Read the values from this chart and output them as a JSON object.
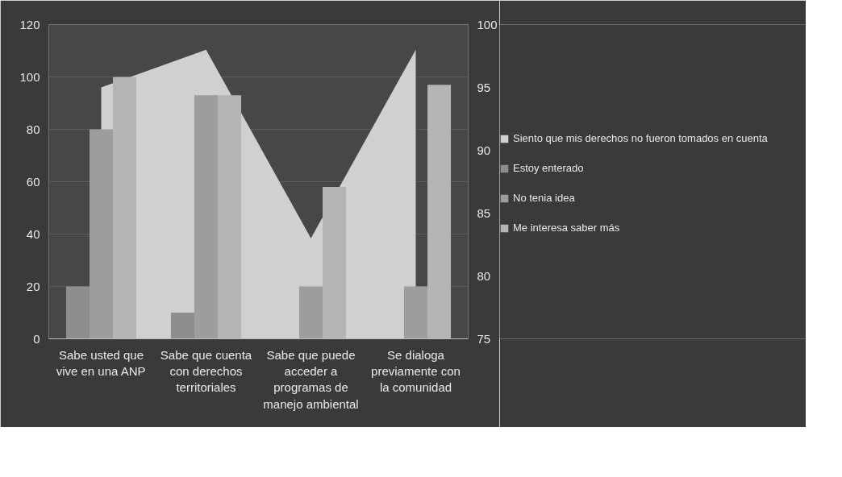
{
  "chart_data": {
    "type": "bar",
    "categories": [
      "Sabe usted que vive en una ANP",
      "Sabe que cuenta con derechos territoriales",
      "Sabe que puede acceder a programas de manejo ambiental",
      "Se dialoga previamente con la comunidad"
    ],
    "series": [
      {
        "name": "Siento que mis derechos no fueron tomados en cuenta",
        "type": "area",
        "axis": "y2",
        "color": "#d0d0d0",
        "values": [
          95,
          98,
          83,
          98
        ]
      },
      {
        "name": "Estoy enterado",
        "color": "#8e8e8e",
        "values": [
          20,
          10,
          null,
          null
        ]
      },
      {
        "name": "No tenia idea",
        "color": "#9d9d9d",
        "values": [
          80,
          93,
          20,
          20
        ]
      },
      {
        "name": "Me interesa saber más",
        "color": "#b4b4b4",
        "values": [
          100,
          93,
          58,
          97
        ]
      }
    ],
    "ylim": [
      0,
      120
    ],
    "yticks": [
      0,
      20,
      40,
      60,
      80,
      100,
      120
    ],
    "y2lim": [
      75,
      100
    ],
    "y2ticks": [
      75,
      80,
      85,
      90,
      95,
      100
    ],
    "grid": "y",
    "legend": "right"
  }
}
